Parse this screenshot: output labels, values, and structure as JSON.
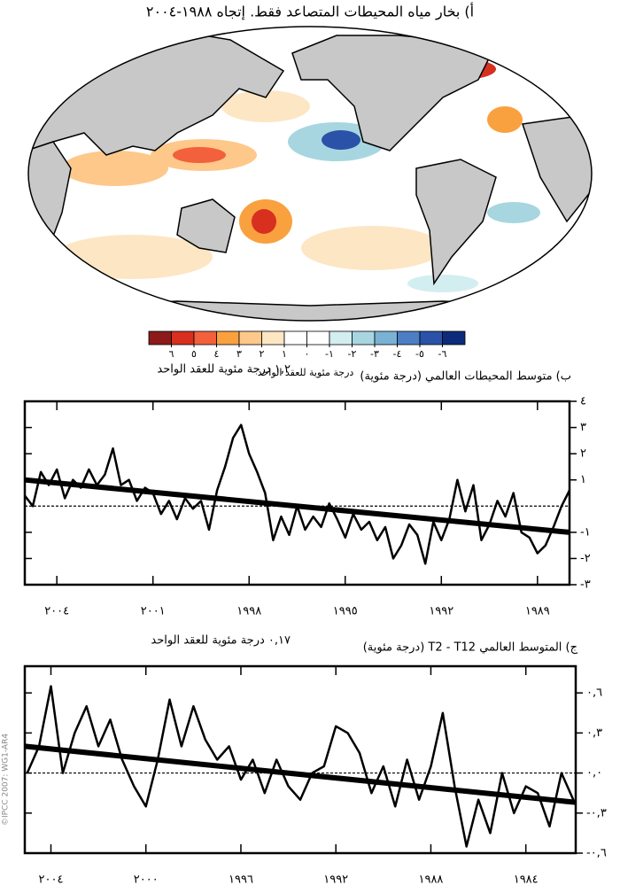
{
  "map": {
    "title": "أ) بخار مياه المحيطات المتصاعد فقط. إتجاه ١٩٨٨-٢٠٠٤",
    "colorbar": {
      "colors": [
        "#8c1a1a",
        "#d7301f",
        "#f2603c",
        "#f9a13f",
        "#fdc88a",
        "#fde6c4",
        "#ffffff",
        "#ffffff",
        "#d3eef0",
        "#a8d6e0",
        "#79b2d4",
        "#4b7ec3",
        "#2a52a8",
        "#0d2b7a"
      ],
      "ticks": [
        {
          "value": 6,
          "label": "٦"
        },
        {
          "value": 5,
          "label": "٥"
        },
        {
          "value": 4,
          "label": "٤"
        },
        {
          "value": 3,
          "label": "٣"
        },
        {
          "value": 2,
          "label": "٢"
        },
        {
          "value": 1,
          "label": "١"
        },
        {
          "value": 0,
          "label": "٠"
        },
        {
          "value": -1,
          "label": "-١"
        },
        {
          "value": -2,
          "label": "-٢"
        },
        {
          "value": -3,
          "label": "-٣"
        },
        {
          "value": -4,
          "label": "-٤"
        },
        {
          "value": -5,
          "label": "-٥"
        },
        {
          "value": -6,
          "label": "-٦"
        }
      ],
      "unit": "درجة مئوية للعقد الواحد"
    }
  },
  "chart_data": [
    {
      "type": "line",
      "title": "ب) متوسط المحيطات العالمي (درجة مئوية)",
      "annotation": "١,٢ درجة مئوية للعقد الواحد",
      "xlim": [
        2005,
        1988
      ],
      "ylim": [
        -3,
        4
      ],
      "xticks": [
        {
          "value": 2004,
          "label": "٢٠٠٤"
        },
        {
          "value": 2001,
          "label": "٢٠٠١"
        },
        {
          "value": 1998,
          "label": "١٩٩٨"
        },
        {
          "value": 1995,
          "label": "١٩٩٥"
        },
        {
          "value": 1992,
          "label": "١٩٩٢"
        },
        {
          "value": 1989,
          "label": "١٩٨٩"
        }
      ],
      "yticks": [
        {
          "value": 4,
          "label": "٤"
        },
        {
          "value": 3,
          "label": "٣"
        },
        {
          "value": 2,
          "label": "٢"
        },
        {
          "value": 1,
          "label": "١"
        },
        {
          "value": -1,
          "label": "-١"
        },
        {
          "value": -2,
          "label": "-٢"
        },
        {
          "value": -3,
          "label": "-٣"
        }
      ],
      "reference_line": 0,
      "x": [
        1988,
        1988.25,
        1988.5,
        1988.75,
        1989,
        1989.25,
        1989.5,
        1989.75,
        1990,
        1990.25,
        1990.5,
        1990.75,
        1991,
        1991.25,
        1991.5,
        1991.75,
        1992,
        1992.25,
        1992.5,
        1992.75,
        1993,
        1993.25,
        1993.5,
        1993.75,
        1994,
        1994.25,
        1994.5,
        1994.75,
        1995,
        1995.25,
        1995.5,
        1995.75,
        1996,
        1996.25,
        1996.5,
        1996.75,
        1997,
        1997.25,
        1997.5,
        1997.75,
        1998,
        1998.25,
        1998.5,
        1998.75,
        1999,
        1999.25,
        1999.5,
        1999.75,
        2000,
        2000.25,
        2000.5,
        2000.75,
        2001,
        2001.25,
        2001.5,
        2001.75,
        2002,
        2002.25,
        2002.5,
        2002.75,
        2003,
        2003.25,
        2003.5,
        2003.75,
        2004,
        2004.25,
        2004.5,
        2004.75,
        2005
      ],
      "series": [
        {
          "color": "#000000",
          "values": [
            0.6,
            0.0,
            -0.8,
            -1.5,
            -1.8,
            -1.2,
            -1.0,
            0.5,
            -0.4,
            0.2,
            -0.7,
            -1.3,
            0.8,
            -0.2,
            1.0,
            -0.5,
            -1.3,
            -0.6,
            -2.2,
            -1.1,
            -0.7,
            -1.5,
            -2.0,
            -0.8,
            -1.3,
            -0.6,
            -0.9,
            -0.3,
            -1.2,
            -0.5,
            0.1,
            -0.8,
            -0.4,
            -0.9,
            0.0,
            -1.1,
            -0.4,
            -1.3,
            0.5,
            1.3,
            2.0,
            3.1,
            2.6,
            1.5,
            0.6,
            -0.9,
            0.2,
            -0.1,
            0.3,
            -0.5,
            0.2,
            -0.3,
            0.5,
            0.7,
            0.2,
            1.0,
            0.8,
            2.2,
            1.2,
            0.8,
            1.4,
            0.7,
            1.0,
            0.3,
            1.4,
            0.8,
            1.3,
            0.0,
            0.4
          ]
        }
      ],
      "trend": {
        "x": [
          1988,
          2005
        ],
        "values": [
          -1.0,
          1.0
        ],
        "color": "#000000"
      }
    },
    {
      "type": "line",
      "title": "ج) المتوسط العالمي T2 - T12 (درجة مئوية)",
      "annotation": "٠,١٧ درجة مئوية للعقد الواحد",
      "xlim": [
        2005.1,
        1981.9
      ],
      "ylim": [
        -0.6,
        0.8
      ],
      "xticks": [
        {
          "value": 2004,
          "label": "٢٠٠٤"
        },
        {
          "value": 2000,
          "label": "٢٠٠٠"
        },
        {
          "value": 1996,
          "label": "١٩٩٦"
        },
        {
          "value": 1992,
          "label": "١٩٩٢"
        },
        {
          "value": 1988,
          "label": "١٩٨٨"
        },
        {
          "value": 1984,
          "label": "١٩٨٤"
        }
      ],
      "yticks": [
        {
          "value": 0.6,
          "label": "٠,٦"
        },
        {
          "value": 0.3,
          "label": "٠,٣"
        },
        {
          "value": 0,
          "label": "٠,٠"
        },
        {
          "value": -0.3,
          "label": "-٠,٣"
        },
        {
          "value": -0.6,
          "label": "-٠,٦"
        }
      ],
      "reference_line": 0,
      "x": [
        1982,
        1982.5,
        1983,
        1983.5,
        1984,
        1984.5,
        1985,
        1985.5,
        1986,
        1986.5,
        1987,
        1987.5,
        1988,
        1988.5,
        1989,
        1989.5,
        1990,
        1990.5,
        1991,
        1991.5,
        1992,
        1992.5,
        1993,
        1993.5,
        1994,
        1994.5,
        1995,
        1995.5,
        1996,
        1996.5,
        1997,
        1997.5,
        1998,
        1998.5,
        1999,
        1999.5,
        2000,
        2000.5,
        2001,
        2001.5,
        2002,
        2002.5,
        2003,
        2003.5,
        2004,
        2004.5,
        2005
      ],
      "series": [
        {
          "color": "#000000",
          "values": [
            -0.2,
            0.0,
            -0.4,
            -0.15,
            -0.1,
            -0.3,
            0.0,
            -0.45,
            -0.2,
            -0.55,
            -0.1,
            0.45,
            0.05,
            -0.2,
            0.1,
            -0.25,
            0.05,
            -0.15,
            0.15,
            0.3,
            0.35,
            0.05,
            0.0,
            -0.2,
            -0.1,
            0.1,
            -0.15,
            0.1,
            -0.05,
            0.2,
            0.1,
            0.25,
            0.5,
            0.2,
            0.55,
            0.1,
            -0.25,
            -0.1,
            0.1,
            0.4,
            0.2,
            0.5,
            0.3,
            0.0,
            0.65,
            0.2,
            0.0
          ]
        }
      ],
      "trend": {
        "x": [
          1981.9,
          2005.1
        ],
        "values": [
          -0.22,
          0.2
        ],
        "color": "#000000"
      }
    }
  ],
  "credit": "©IPCC 2007: WG1-AR4"
}
